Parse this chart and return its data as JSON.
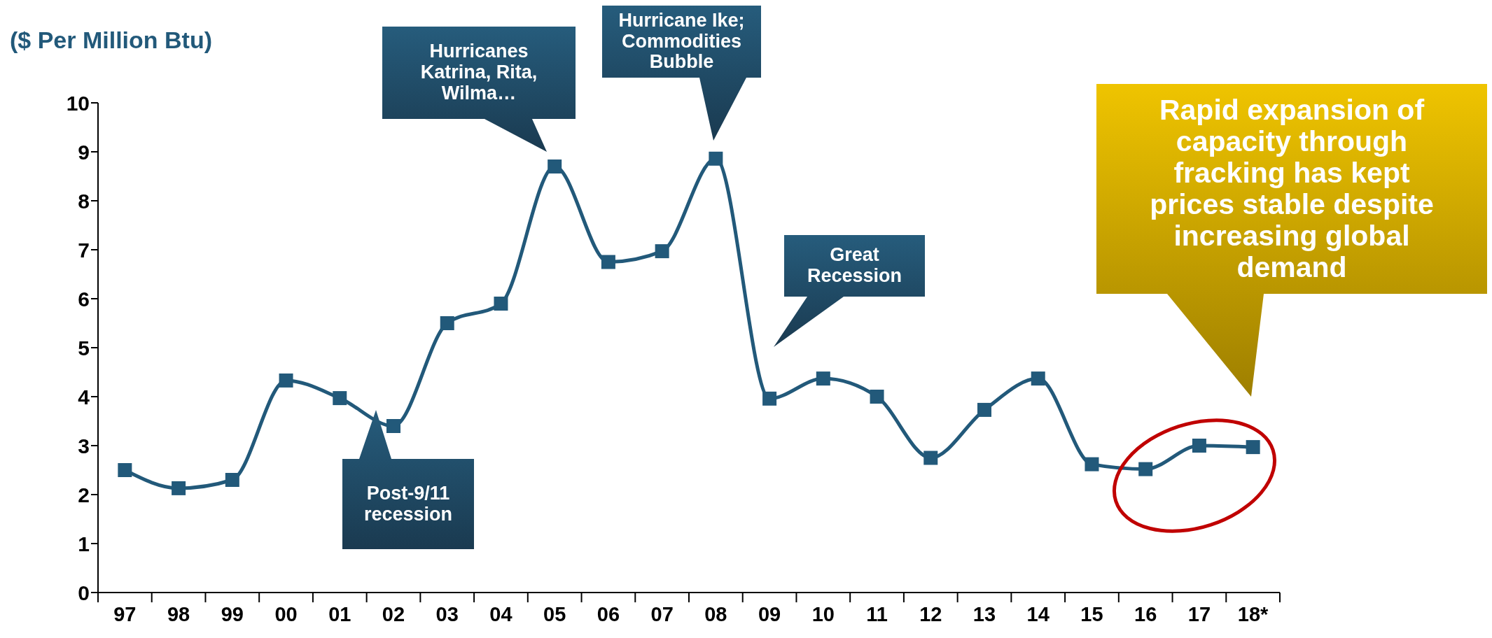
{
  "chart_data": {
    "type": "line",
    "ylabel": "($ Per Million Btu)",
    "categories": [
      "97",
      "98",
      "99",
      "00",
      "01",
      "02",
      "03",
      "04",
      "05",
      "06",
      "07",
      "08",
      "09",
      "10",
      "11",
      "12",
      "13",
      "14",
      "15",
      "16",
      "17",
      "18*"
    ],
    "series": [
      {
        "color": "#22597a",
        "values": [
          2.5,
          2.13,
          2.3,
          4.33,
          3.97,
          3.4,
          5.5,
          5.9,
          8.7,
          6.75,
          6.97,
          8.86,
          3.96,
          4.37,
          4.0,
          2.75,
          3.73,
          4.37,
          2.62,
          2.52,
          3.0,
          2.97
        ]
      }
    ],
    "ylim": [
      0,
      10
    ],
    "yticks": [
      0,
      1,
      2,
      3,
      4,
      5,
      6,
      7,
      8,
      9,
      10
    ],
    "marker": "square",
    "annotations": [
      "Hurricanes Katrina, Rita, Wilma…",
      "Hurricane Ike; Commodities Bubble",
      "Post-9/11 recession",
      "Great Recession",
      "Rapid expansion of capacity through fracking has kept prices stable despite increasing global demand"
    ]
  }
}
